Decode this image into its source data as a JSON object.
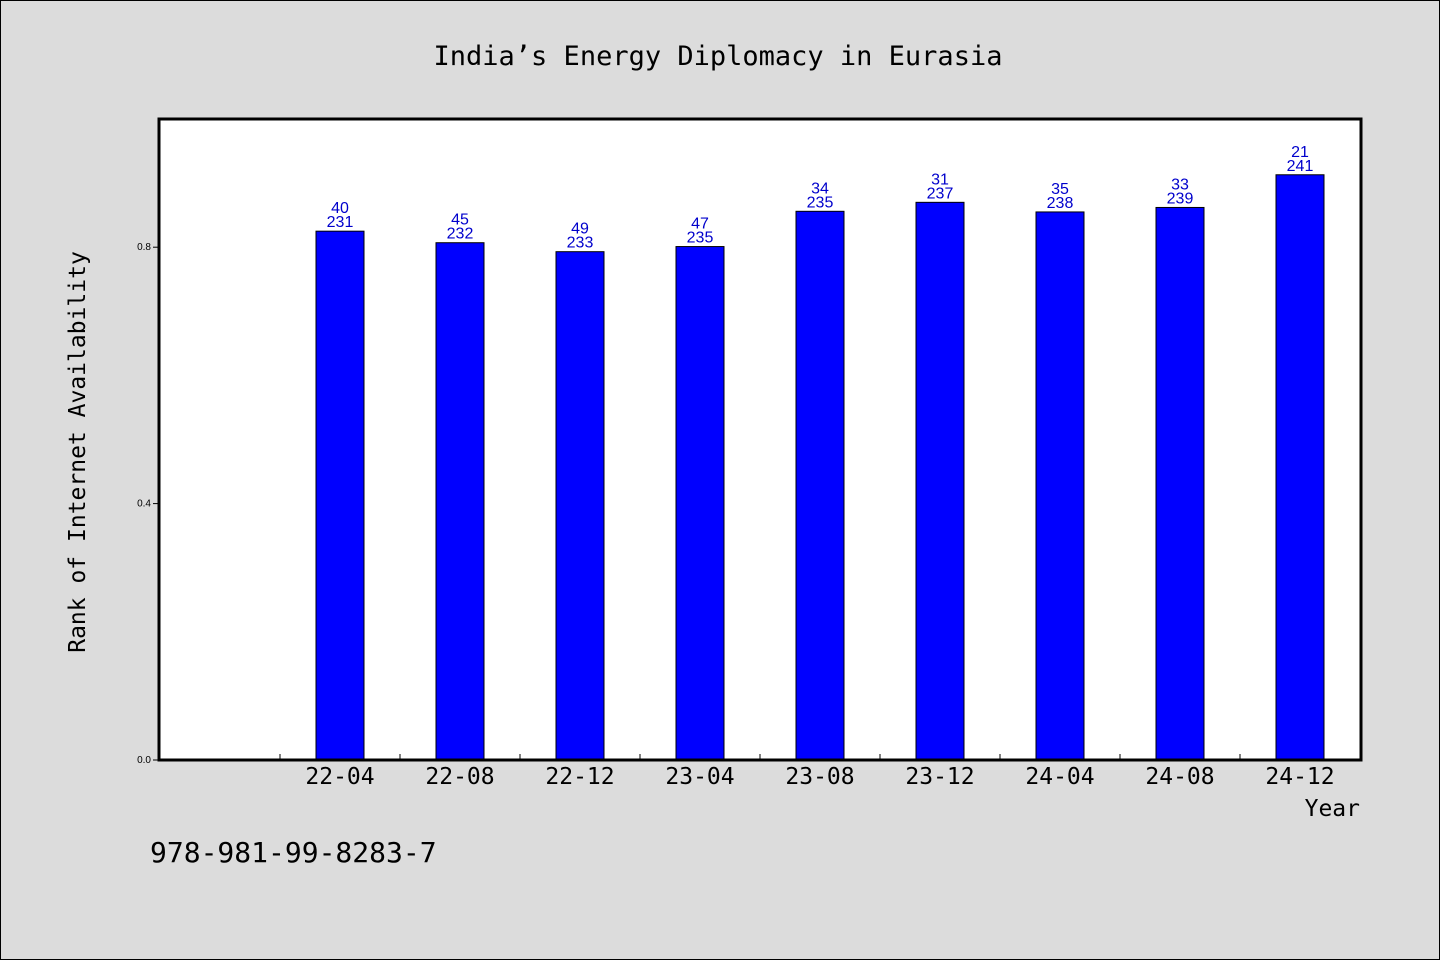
{
  "chart_data": {
    "type": "bar",
    "title": "India’s Energy Diplomacy in Eurasia",
    "xlabel": "Year",
    "ylabel": "Rank of Internet Availability",
    "categories": [
      "22-04",
      "22-08",
      "22-12",
      "23-04",
      "23-08",
      "23-12",
      "24-04",
      "24-08",
      "24-12"
    ],
    "values": [
      0.825,
      0.807,
      0.793,
      0.801,
      0.856,
      0.87,
      0.855,
      0.862,
      0.913
    ],
    "bar_labels_top": [
      "40",
      "45",
      "49",
      "47",
      "34",
      "31",
      "35",
      "33",
      "21"
    ],
    "bar_labels_bottom": [
      "231",
      "232",
      "233",
      "235",
      "235",
      "237",
      "238",
      "239",
      "241"
    ],
    "yticks": [
      "0.0",
      "0.4",
      "0.8"
    ],
    "ylim": [
      0,
      1.0
    ],
    "grid": false,
    "legend": "none",
    "bar_color": "#0000ff",
    "label_color": "#0000cc"
  },
  "footer_text": "978-981-99-8283-7"
}
